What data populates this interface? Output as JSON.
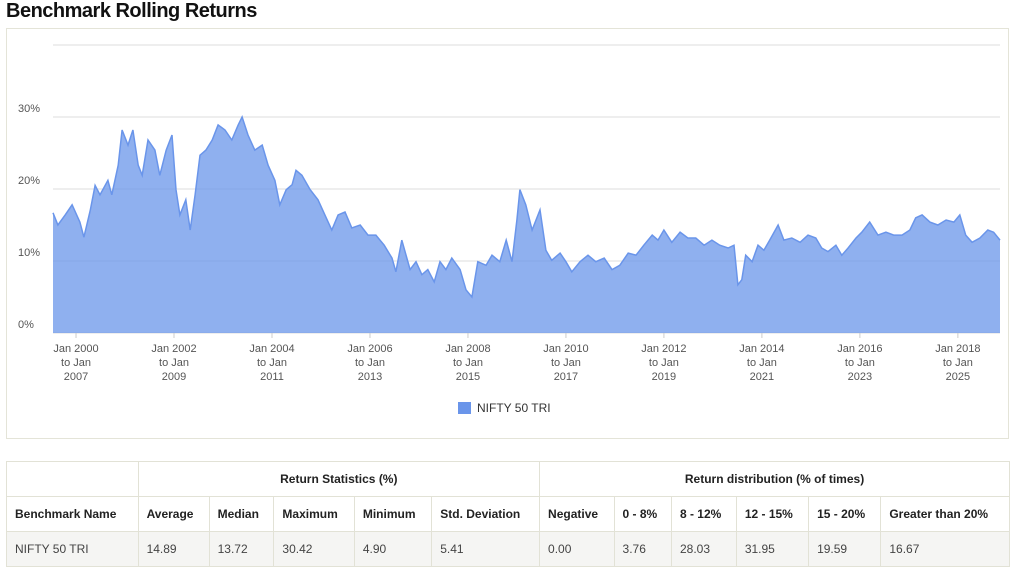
{
  "title": "Benchmark Rolling Returns",
  "chart_data": {
    "type": "area",
    "xlim": [
      1999.53,
      2018.86
    ],
    "ylim": [
      0,
      40
    ],
    "yticks": [
      {
        "value": 0,
        "label": "0%"
      },
      {
        "value": 10,
        "label": "10%"
      },
      {
        "value": 20,
        "label": "20%"
      },
      {
        "value": 30,
        "label": "30%"
      }
    ],
    "xticks": [
      {
        "value": 2000,
        "label": "Jan 2000 to Jan 2007"
      },
      {
        "value": 2002,
        "label": "Jan 2002 to Jan 2009"
      },
      {
        "value": 2004,
        "label": "Jan 2004 to Jan 2011"
      },
      {
        "value": 2006,
        "label": "Jan 2006 to Jan 2013"
      },
      {
        "value": 2008,
        "label": "Jan 2008 to Jan 2015"
      },
      {
        "value": 2010,
        "label": "Jan 2010 to Jan 2017"
      },
      {
        "value": 2012,
        "label": "Jan 2012 to Jan 2019"
      },
      {
        "value": 2014,
        "label": "Jan 2014 to Jan 2021"
      },
      {
        "value": 2016,
        "label": "Jan 2016 to Jan 2023"
      },
      {
        "value": 2018,
        "label": "Jan 2018 to Jan 2025"
      }
    ],
    "grid": true,
    "legend": "bottom",
    "x": [
      1999.53,
      1999.63,
      1999.78,
      1999.92,
      2000.08,
      2000.16,
      2000.29,
      2000.39,
      2000.49,
      2000.65,
      2000.73,
      2000.86,
      2000.94,
      2001.06,
      2001.16,
      2001.27,
      2001.35,
      2001.47,
      2001.61,
      2001.71,
      2001.84,
      2001.96,
      2002.04,
      2002.12,
      2002.24,
      2002.33,
      2002.43,
      2002.53,
      2002.65,
      2002.78,
      2002.9,
      2003.04,
      2003.18,
      2003.31,
      2003.39,
      2003.51,
      2003.65,
      2003.8,
      2003.92,
      2004.06,
      2004.16,
      2004.29,
      2004.41,
      2004.49,
      2004.61,
      2004.78,
      2004.94,
      2005.08,
      2005.22,
      2005.35,
      2005.49,
      2005.63,
      2005.8,
      2005.96,
      2006.12,
      2006.29,
      2006.45,
      2006.53,
      2006.65,
      2006.82,
      2006.94,
      2007.06,
      2007.18,
      2007.31,
      2007.43,
      2007.55,
      2007.67,
      2007.84,
      2007.96,
      2008.08,
      2008.2,
      2008.37,
      2008.49,
      2008.65,
      2008.78,
      2008.9,
      2009.0,
      2009.06,
      2009.18,
      2009.31,
      2009.47,
      2009.59,
      2009.71,
      2009.88,
      2010.0,
      2010.12,
      2010.29,
      2010.45,
      2010.61,
      2010.78,
      2010.94,
      2011.1,
      2011.27,
      2011.43,
      2011.59,
      2011.76,
      2011.88,
      2012.0,
      2012.16,
      2012.33,
      2012.49,
      2012.65,
      2012.82,
      2012.98,
      2013.14,
      2013.31,
      2013.43,
      2013.51,
      2013.59,
      2013.67,
      2013.8,
      2013.92,
      2014.04,
      2014.16,
      2014.33,
      2014.45,
      2014.61,
      2014.78,
      2014.94,
      2015.1,
      2015.22,
      2015.35,
      2015.51,
      2015.63,
      2015.76,
      2015.92,
      2016.04,
      2016.2,
      2016.37,
      2016.53,
      2016.69,
      2016.86,
      2017.02,
      2017.14,
      2017.27,
      2017.43,
      2017.59,
      2017.76,
      2017.92,
      2018.04,
      2018.16,
      2018.29,
      2018.45,
      2018.61,
      2018.73,
      2018.86
    ],
    "series": [
      {
        "name": "NIFTY 50 TRI",
        "color": "#6a95ea",
        "values": [
          16.7,
          15,
          16.4,
          17.8,
          15.4,
          13.3,
          17,
          20.5,
          19.2,
          21.2,
          19.2,
          23.3,
          28.2,
          26.1,
          28.2,
          23.3,
          21.9,
          26.8,
          25.4,
          21.9,
          25.4,
          27.5,
          19.9,
          16.4,
          18.5,
          14.3,
          19.2,
          24.7,
          25.4,
          26.8,
          28.9,
          28.2,
          26.8,
          28.9,
          30.0,
          27.5,
          25.4,
          26.1,
          23.3,
          21.2,
          17.8,
          19.9,
          20.6,
          22.6,
          21.9,
          19.9,
          18.5,
          16.4,
          14.3,
          16.4,
          16.8,
          14.6,
          15,
          13.6,
          13.6,
          12.2,
          10.4,
          8.5,
          12.9,
          8.8,
          9.9,
          8.1,
          8.8,
          7.1,
          9.9,
          8.8,
          10.4,
          8.8,
          6,
          5,
          9.9,
          9.4,
          10.8,
          9.9,
          12.9,
          9.9,
          15.7,
          19.9,
          17.8,
          14.3,
          17.1,
          11.5,
          10.1,
          11.1,
          9.9,
          8.5,
          9.9,
          10.8,
          9.9,
          10.4,
          8.8,
          9.4,
          11.1,
          10.8,
          12.2,
          13.6,
          12.9,
          14.3,
          12.6,
          14,
          13.2,
          13.2,
          12.2,
          12.9,
          12.2,
          11.8,
          12.2,
          6.7,
          7.4,
          10.8,
          9.9,
          12.2,
          11.5,
          12.9,
          15,
          12.9,
          13.2,
          12.6,
          13.6,
          13.2,
          11.8,
          11.3,
          12.2,
          10.8,
          11.8,
          13.2,
          14,
          15.4,
          13.6,
          14,
          13.6,
          13.6,
          14.3,
          16,
          16.4,
          15.4,
          15,
          15.7,
          15.4,
          16.4,
          13.6,
          12.6,
          13.2,
          14.3,
          14,
          12.9
        ]
      }
    ]
  },
  "table": {
    "group_headers": [
      "Return Statistics (%)",
      "Return distribution (% of times)"
    ],
    "headers": [
      "Benchmark Name",
      "Average",
      "Median",
      "Maximum",
      "Minimum",
      "Std. Deviation",
      "Negative",
      "0 - 8%",
      "8 - 12%",
      "12 - 15%",
      "15 - 20%",
      "Greater than 20%"
    ],
    "rows": [
      [
        "NIFTY 50 TRI",
        "14.89",
        "13.72",
        "30.42",
        "4.90",
        "5.41",
        "0.00",
        "3.76",
        "28.03",
        "31.95",
        "19.59",
        "16.67"
      ]
    ]
  }
}
